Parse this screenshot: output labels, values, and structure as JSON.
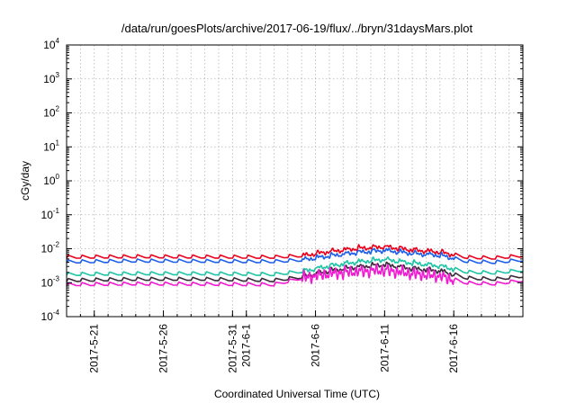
{
  "chart_data": {
    "type": "line",
    "title": "/data/run/goesPlots/archive/2017-06-19/flux/../bryn/31daysMars.plot",
    "xlabel": "Coordinated Universal Time (UTC)",
    "ylabel": "cGy/day",
    "yscale": "log",
    "ylim": [
      0.0001,
      10000
    ],
    "y_ticks": [
      {
        "base": "10",
        "exp": "-4"
      },
      {
        "base": "10",
        "exp": "-3"
      },
      {
        "base": "10",
        "exp": "-2"
      },
      {
        "base": "10",
        "exp": "-1"
      },
      {
        "base": "10",
        "exp": "0"
      },
      {
        "base": "10",
        "exp": "1"
      },
      {
        "base": "10",
        "exp": "2"
      },
      {
        "base": "10",
        "exp": "3"
      },
      {
        "base": "10",
        "exp": "4"
      }
    ],
    "xlim": [
      "2017-05-19",
      "2017-06-21"
    ],
    "x_ticks": [
      {
        "date": "2017-05-21",
        "label": "2017-5-21"
      },
      {
        "date": "2017-05-26",
        "label": "2017-5-26"
      },
      {
        "date": "2017-05-31",
        "label": "2017-5-31"
      },
      {
        "date": "2017-06-01",
        "label": "2017-6-1"
      },
      {
        "date": "2017-06-06",
        "label": "2017-6-6"
      },
      {
        "date": "2017-06-11",
        "label": "2017-6-11"
      },
      {
        "date": "2017-06-16",
        "label": "2017-6-16"
      }
    ],
    "grid": true,
    "legend": "none",
    "series": [
      {
        "color": "#e8001c",
        "x": [
          "2017-05-19",
          "2017-05-24",
          "2017-05-29",
          "2017-06-03",
          "2017-06-05",
          "2017-06-07",
          "2017-06-09",
          "2017-06-11",
          "2017-06-13",
          "2017-06-15",
          "2017-06-17",
          "2017-06-19",
          "2017-06-21"
        ],
        "y": [
          0.0058,
          0.006,
          0.0059,
          0.0058,
          0.0064,
          0.0085,
          0.0105,
          0.0118,
          0.0095,
          0.0082,
          0.0057,
          0.0055,
          0.0064
        ]
      },
      {
        "color": "#1f5fe8",
        "x": [
          "2017-05-19",
          "2017-05-24",
          "2017-05-29",
          "2017-06-03",
          "2017-06-05",
          "2017-06-07",
          "2017-06-09",
          "2017-06-11",
          "2017-06-13",
          "2017-06-15",
          "2017-06-17",
          "2017-06-19",
          "2017-06-21"
        ],
        "y": [
          0.0042,
          0.0045,
          0.0044,
          0.0043,
          0.0048,
          0.0063,
          0.008,
          0.0092,
          0.0075,
          0.0066,
          0.0043,
          0.0041,
          0.0048
        ]
      },
      {
        "color": "#1fc4a6",
        "x": [
          "2017-05-19",
          "2017-05-24",
          "2017-05-29",
          "2017-06-03",
          "2017-06-05",
          "2017-06-07",
          "2017-06-09",
          "2017-06-11",
          "2017-06-13",
          "2017-06-15",
          "2017-06-17",
          "2017-06-19",
          "2017-06-21"
        ],
        "y": [
          0.0018,
          0.0019,
          0.0019,
          0.0018,
          0.0022,
          0.0032,
          0.0042,
          0.005,
          0.0039,
          0.0032,
          0.0021,
          0.002,
          0.0024
        ]
      },
      {
        "color": "#3a2a3a",
        "x": [
          "2017-05-19",
          "2017-05-24",
          "2017-05-29",
          "2017-06-03",
          "2017-06-05",
          "2017-06-07",
          "2017-06-09",
          "2017-06-11",
          "2017-06-13",
          "2017-06-15",
          "2017-06-17",
          "2017-06-19",
          "2017-06-21"
        ],
        "y": [
          0.0012,
          0.0013,
          0.0013,
          0.0012,
          0.0015,
          0.0023,
          0.003,
          0.0035,
          0.0027,
          0.0023,
          0.0014,
          0.0013,
          0.0016
        ]
      },
      {
        "color": "#f01ad0",
        "x": [
          "2017-05-19",
          "2017-05-24",
          "2017-05-29",
          "2017-06-03",
          "2017-06-05",
          "2017-06-07",
          "2017-06-09",
          "2017-06-11",
          "2017-06-13",
          "2017-06-15",
          "2017-06-17",
          "2017-06-19",
          "2017-06-21"
        ],
        "y": [
          0.0009,
          0.00095,
          0.00093,
          0.0009,
          0.0014,
          0.0019,
          0.0022,
          0.0024,
          0.0019,
          0.0016,
          0.001,
          0.00095,
          0.0012
        ]
      }
    ]
  }
}
